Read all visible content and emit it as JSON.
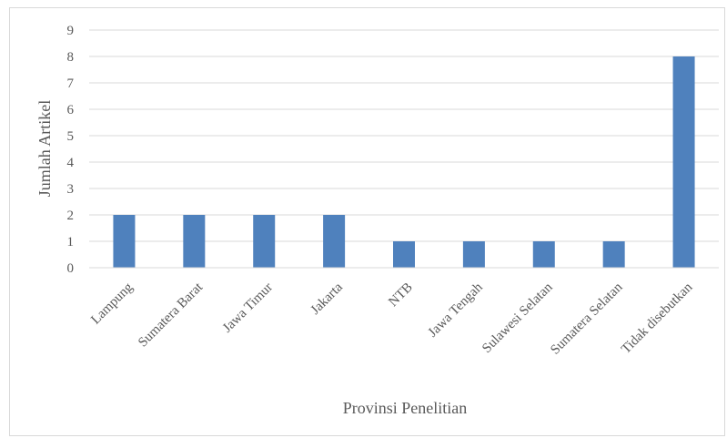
{
  "chart_data": {
    "type": "bar",
    "title": "",
    "xlabel": "Provinsi Penelitian",
    "ylabel": "Jumlah Artikel",
    "categories": [
      "Lampung",
      "Sumatera Barat",
      "Jawa Timur",
      "Jakarta",
      "NTB",
      "Jawa Tengah",
      "Sulawesi Selatan",
      "Sumatera Selatan",
      "Tidak disebutkan"
    ],
    "values": [
      2,
      2,
      2,
      2,
      1,
      1,
      1,
      1,
      8
    ],
    "ylim": [
      0,
      9
    ],
    "yticks": [
      0,
      1,
      2,
      3,
      4,
      5,
      6,
      7,
      8,
      9
    ],
    "grid": true,
    "legend": "none",
    "colors": {
      "bar": "#4f81bd",
      "grid": "#d9d9d9",
      "text": "#595959"
    }
  }
}
